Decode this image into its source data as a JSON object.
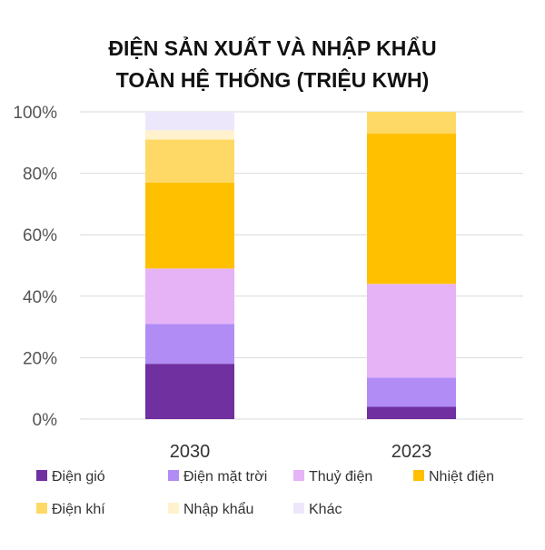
{
  "chart_data": {
    "type": "bar",
    "stacked": true,
    "title_lines": [
      "ĐIỆN SẢN XUẤT VÀ NHẬP KHẨU",
      "TOÀN HỆ THỐNG (TRIỆU KWH)"
    ],
    "categories": [
      "2030",
      "2023"
    ],
    "ylim": [
      0,
      100
    ],
    "yticks": [
      0,
      20,
      40,
      60,
      80,
      100
    ],
    "ytick_labels": [
      "0%",
      "20%",
      "40%",
      "60%",
      "80%",
      "100%"
    ],
    "grid": true,
    "legend_position": "bottom",
    "series": [
      {
        "name": "Điện gió",
        "color": "#7030a0",
        "values": [
          18,
          4
        ]
      },
      {
        "name": "Điện mặt trời",
        "color": "#b18cf5",
        "values": [
          13,
          9.5
        ]
      },
      {
        "name": "Thuỷ điện",
        "color": "#e6b3f7",
        "values": [
          18,
          30.5
        ]
      },
      {
        "name": "Nhiệt điện",
        "color": "#ffc000",
        "values": [
          28,
          49
        ]
      },
      {
        "name": "Điện khí",
        "color": "#ffd966",
        "values": [
          14,
          7
        ]
      },
      {
        "name": "Nhập khẩu",
        "color": "#fff2cc",
        "values": [
          3,
          0
        ]
      },
      {
        "name": "Khác",
        "color": "#ede7fb",
        "values": [
          6,
          0
        ]
      }
    ]
  }
}
